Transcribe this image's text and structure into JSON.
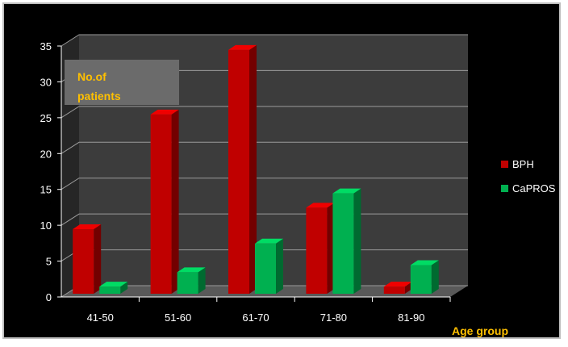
{
  "chart_data": {
    "type": "bar",
    "title": "",
    "ylabel": "No.of patients",
    "xlabel": "Age group",
    "categories": [
      "41-50",
      "51-60",
      "61-70",
      "71-80",
      "81-90"
    ],
    "ylim": [
      0,
      35
    ],
    "yticks": [
      0,
      5,
      10,
      15,
      20,
      25,
      30,
      35
    ],
    "grid": true,
    "legend_position": "right",
    "series": [
      {
        "name": "BPH",
        "values": [
          9,
          25,
          34,
          12,
          1
        ],
        "color": "#c00000"
      },
      {
        "name": "CaPROS",
        "values": [
          1,
          3,
          7,
          14,
          4
        ],
        "color": "#00b050"
      }
    ]
  }
}
